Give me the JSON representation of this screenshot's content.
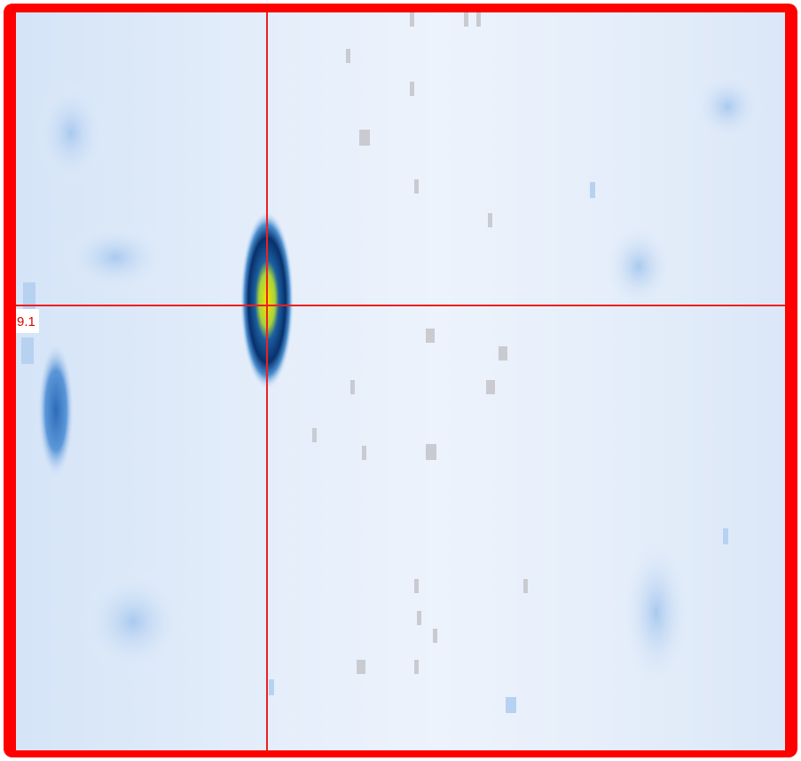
{
  "crosshair": {
    "label": "9.1"
  }
}
